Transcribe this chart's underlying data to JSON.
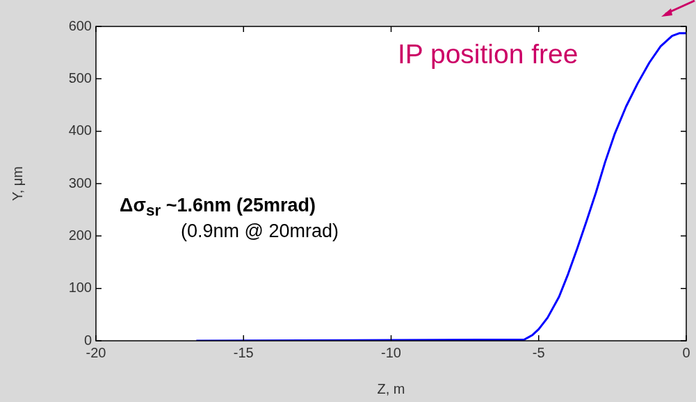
{
  "chart_data": {
    "type": "line",
    "xlabel": "Z, m",
    "ylabel": "Y, μm",
    "xlim": [
      -20,
      0
    ],
    "xticks": [
      -20,
      -15,
      -10,
      -5,
      0
    ],
    "ylim": [
      0,
      600
    ],
    "yticks": [
      0,
      100,
      200,
      300,
      400,
      500,
      600
    ],
    "grid": false,
    "legend": false,
    "marker": "none",
    "line_style": "solid",
    "series": [
      {
        "color": "#0000ff",
        "x": [
          -16.6,
          -7,
          -5.5,
          -5.21,
          -5.0,
          -4.7,
          -4.31,
          -4.0,
          -3.69,
          -3.37,
          -3.06,
          -2.75,
          -2.43,
          -2.04,
          -1.65,
          -1.25,
          -0.87,
          -0.48,
          -0.24,
          0
        ],
        "values": [
          0,
          2,
          2,
          11,
          22,
          44,
          84,
          128,
          177,
          230,
          283,
          341,
          394,
          447,
          491,
          531,
          562,
          582,
          587,
          587
        ]
      }
    ],
    "annotations": [
      "Δσ$_{sr}$ ~1.6nm (25mrad)",
      "(0.9nm @ 20mrad)",
      "IP position free"
    ]
  }
}
